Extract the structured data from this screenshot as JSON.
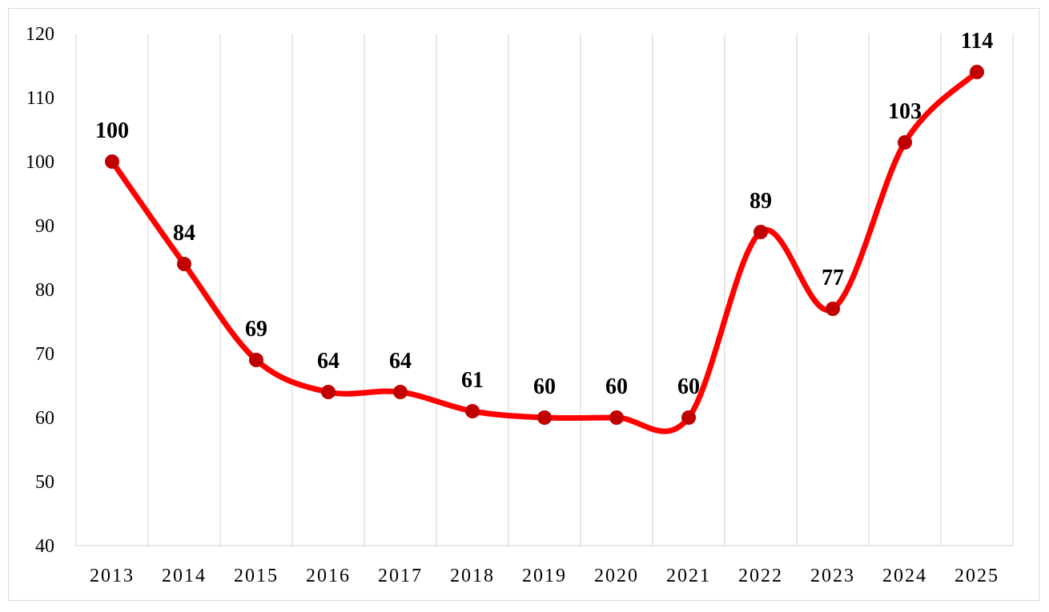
{
  "chart_data": {
    "type": "line",
    "categories": [
      "2013",
      "2014",
      "2015",
      "2016",
      "2017",
      "2018",
      "2019",
      "2020",
      "2021",
      "2022",
      "2023",
      "2024",
      "2025"
    ],
    "series": [
      {
        "values": [
          100,
          84,
          69,
          64,
          64,
          61,
          60,
          60,
          60,
          89,
          77,
          103,
          114
        ]
      }
    ],
    "data_labels": [
      "100",
      "84",
      "69",
      "64",
      "64",
      "61",
      "60",
      "60",
      "60",
      "89",
      "77",
      "103",
      "114"
    ],
    "ylim": [
      40,
      120
    ],
    "y_ticks": [
      40,
      50,
      60,
      70,
      80,
      90,
      100,
      110,
      120
    ],
    "y_tick_labels": [
      "40",
      "50",
      "60",
      "70",
      "80",
      "90",
      "100",
      "110",
      "120"
    ],
    "grid": "vertical",
    "legend": "none",
    "smooth": true,
    "colors": {
      "line": "#ff0000",
      "marker": "#c00000",
      "grid": "#d9d9d9"
    }
  }
}
